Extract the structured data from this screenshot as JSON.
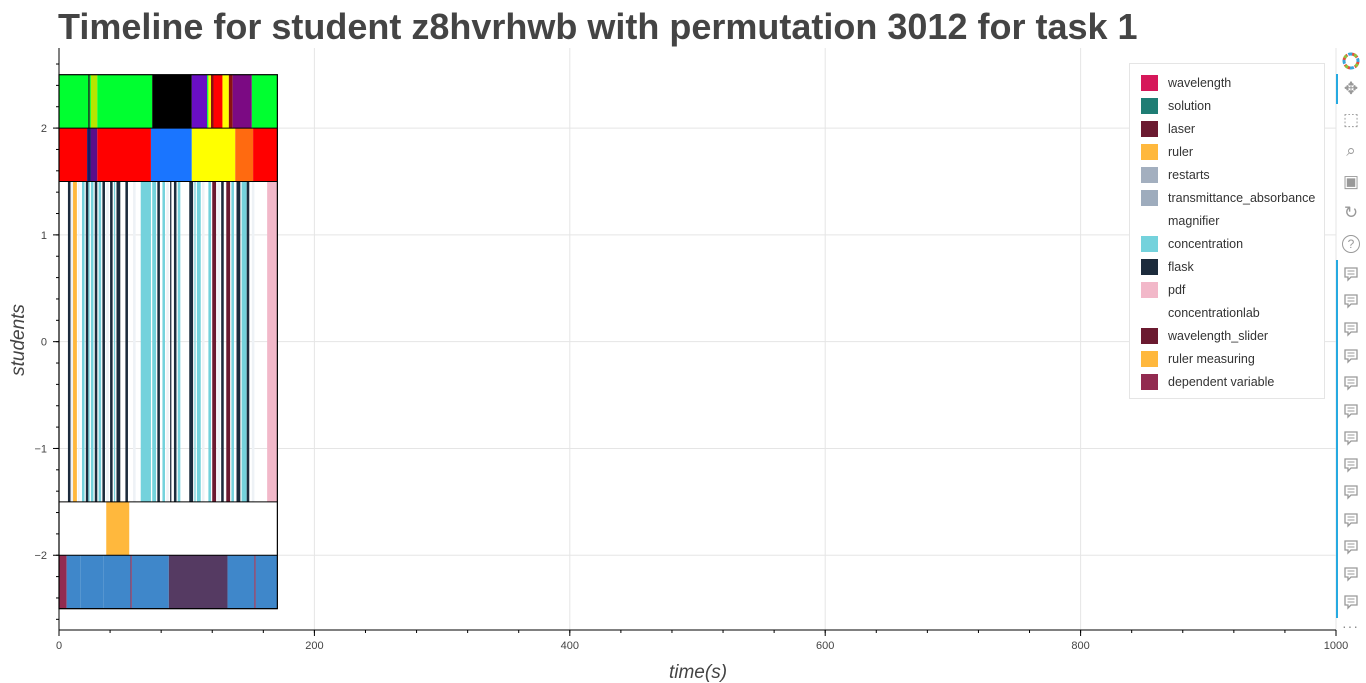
{
  "chart_data": {
    "type": "timeline",
    "title": "Timeline for student z8hvrhwb with permutation 3012 for task 1",
    "xlabel": "time(s)",
    "ylabel": "students",
    "xlim": [
      0,
      1000
    ],
    "ylim": [
      -2.7,
      2.75
    ],
    "xticks": [
      0,
      200,
      400,
      600,
      800,
      1000
    ],
    "yticks": [
      -2,
      -1,
      0,
      1,
      2
    ],
    "x_minor_step": 40,
    "y_minor_step": 0.2,
    "grid": true,
    "legend_position": "top-right",
    "legend": [
      {
        "label": "wavelength",
        "color": "#d6185a"
      },
      {
        "label": "solution",
        "color": "#1f7d74"
      },
      {
        "label": "laser",
        "color": "#6b1a30"
      },
      {
        "label": "ruler",
        "color": "#ffb83d"
      },
      {
        "label": "restarts",
        "color": "#a3afbf"
      },
      {
        "label": "transmittance_absorbance",
        "color": "#9eacbd"
      },
      {
        "label": "magnifier",
        "color": "#ffffff"
      },
      {
        "label": "concentration",
        "color": "#74d2dc"
      },
      {
        "label": "flask",
        "color": "#1c2b3c"
      },
      {
        "label": "pdf",
        "color": "#f2b8c9"
      },
      {
        "label": "concentrationlab",
        "color": "#ffffff"
      },
      {
        "label": "wavelength_slider",
        "color": "#6b1a30"
      },
      {
        "label": "ruler measuring",
        "color": "#ffb83d"
      },
      {
        "label": "dependent variable",
        "color": "#922b50"
      }
    ],
    "rows": [
      {
        "y0": 2.0,
        "y1": 2.5,
        "segments": [
          {
            "x0": 0,
            "x1": 23,
            "color": "#00ff30"
          },
          {
            "x0": 23,
            "x1": 24,
            "color": "#000000"
          },
          {
            "x0": 24,
            "x1": 25,
            "color": "#00ff30"
          },
          {
            "x0": 25,
            "x1": 30,
            "color": "#b6e600"
          },
          {
            "x0": 30,
            "x1": 73,
            "color": "#00ff30"
          },
          {
            "x0": 73,
            "x1": 104,
            "color": "#000000"
          },
          {
            "x0": 104,
            "x1": 116,
            "color": "#6a0ec4"
          },
          {
            "x0": 116,
            "x1": 117,
            "color": "#00ff30"
          },
          {
            "x0": 117,
            "x1": 119,
            "color": "#ffff00"
          },
          {
            "x0": 119,
            "x1": 121,
            "color": "#8a1010"
          },
          {
            "x0": 121,
            "x1": 128,
            "color": "#ff0000"
          },
          {
            "x0": 128,
            "x1": 133,
            "color": "#ffff00"
          },
          {
            "x0": 133,
            "x1": 136,
            "color": "#8a1010"
          },
          {
            "x0": 136,
            "x1": 151,
            "color": "#7b0a83"
          },
          {
            "x0": 151,
            "x1": 171,
            "color": "#00ff30"
          }
        ]
      },
      {
        "y0": 1.5,
        "y1": 2.0,
        "segments": [
          {
            "x0": 0,
            "x1": 22,
            "color": "#ff0000"
          },
          {
            "x0": 22,
            "x1": 25,
            "color": "#1a1a66"
          },
          {
            "x0": 25,
            "x1": 30,
            "color": "#5a0e8a"
          },
          {
            "x0": 30,
            "x1": 72,
            "color": "#ff0000"
          },
          {
            "x0": 72,
            "x1": 104,
            "color": "#1a75ff"
          },
          {
            "x0": 104,
            "x1": 138,
            "color": "#ffff00"
          },
          {
            "x0": 138,
            "x1": 152,
            "color": "#ff6a10"
          },
          {
            "x0": 152,
            "x1": 171,
            "color": "#ff0000"
          }
        ]
      },
      {
        "y0": -1.5,
        "y1": 1.5,
        "segments": [
          {
            "x0": 7,
            "x1": 9,
            "color": "#1c2b3c"
          },
          {
            "x0": 9,
            "x1": 11,
            "color": "#eef2f6"
          },
          {
            "x0": 11,
            "x1": 14,
            "color": "#ffb83d"
          },
          {
            "x0": 15,
            "x1": 16,
            "color": "#eef2f6"
          },
          {
            "x0": 18,
            "x1": 20,
            "color": "#74d2dc"
          },
          {
            "x0": 21,
            "x1": 23,
            "color": "#1c2b3c"
          },
          {
            "x0": 23,
            "x1": 24,
            "color": "#74d2dc"
          },
          {
            "x0": 25,
            "x1": 27,
            "color": "#74d2dc"
          },
          {
            "x0": 28,
            "x1": 30,
            "color": "#1c2b3c"
          },
          {
            "x0": 31,
            "x1": 33,
            "color": "#74d2dc"
          },
          {
            "x0": 34,
            "x1": 36,
            "color": "#1c2b3c"
          },
          {
            "x0": 37,
            "x1": 39,
            "color": "#eef2f6"
          },
          {
            "x0": 40,
            "x1": 42,
            "color": "#1c2b3c"
          },
          {
            "x0": 43,
            "x1": 44,
            "color": "#74d2dc"
          },
          {
            "x0": 45,
            "x1": 48,
            "color": "#1c2b3c"
          },
          {
            "x0": 52,
            "x1": 54,
            "color": "#1c2b3c"
          },
          {
            "x0": 58,
            "x1": 60,
            "color": "#eef2f6"
          },
          {
            "x0": 64,
            "x1": 72,
            "color": "#74d2dc"
          },
          {
            "x0": 73,
            "x1": 76,
            "color": "#74d2dc"
          },
          {
            "x0": 77,
            "x1": 79,
            "color": "#1c2b3c"
          },
          {
            "x0": 81,
            "x1": 83,
            "color": "#74d2dc"
          },
          {
            "x0": 84,
            "x1": 86,
            "color": "#eef2f6"
          },
          {
            "x0": 87,
            "x1": 88,
            "color": "#1c2b3c"
          },
          {
            "x0": 90,
            "x1": 92,
            "color": "#1c2b3c"
          },
          {
            "x0": 93,
            "x1": 95,
            "color": "#74d2dc"
          },
          {
            "x0": 102,
            "x1": 105,
            "color": "#1c2b3c"
          },
          {
            "x0": 106,
            "x1": 107,
            "color": "#74d2dc"
          },
          {
            "x0": 108,
            "x1": 111,
            "color": "#74d2dc"
          },
          {
            "x0": 112,
            "x1": 114,
            "color": "#eef2f6"
          },
          {
            "x0": 117,
            "x1": 119,
            "color": "#74d2dc"
          },
          {
            "x0": 120,
            "x1": 123,
            "color": "#6b1a30"
          },
          {
            "x0": 124,
            "x1": 126,
            "color": "#eef2f6"
          },
          {
            "x0": 127,
            "x1": 129,
            "color": "#1c2b3c"
          },
          {
            "x0": 131,
            "x1": 134,
            "color": "#6b1a30"
          },
          {
            "x0": 135,
            "x1": 137,
            "color": "#74d2dc"
          },
          {
            "x0": 139,
            "x1": 142,
            "color": "#1c2b3c"
          },
          {
            "x0": 143,
            "x1": 147,
            "color": "#74d2dc"
          },
          {
            "x0": 147,
            "x1": 149,
            "color": "#1c2b3c"
          },
          {
            "x0": 151,
            "x1": 153,
            "color": "#eef2f6"
          },
          {
            "x0": 163,
            "x1": 171,
            "color": "#f2b8c9"
          }
        ]
      },
      {
        "y0": -2.0,
        "y1": -1.5,
        "segments": [
          {
            "x0": 37,
            "x1": 55,
            "color": "#ffb83d"
          }
        ]
      },
      {
        "y0": -2.5,
        "y1": -2.0,
        "segments": [
          {
            "x0": 0,
            "x1": 6,
            "color": "#922b50"
          },
          {
            "x0": 6,
            "x1": 17,
            "color": "#3f87ca"
          },
          {
            "x0": 17,
            "x1": 35,
            "color": "#3f87ca"
          },
          {
            "x0": 35,
            "x1": 56,
            "color": "#3f87ca"
          },
          {
            "x0": 56,
            "x1": 57,
            "color": "#922b50"
          },
          {
            "x0": 57,
            "x1": 86,
            "color": "#3f87ca"
          },
          {
            "x0": 86,
            "x1": 132,
            "color": "#553a62"
          },
          {
            "x0": 132,
            "x1": 153,
            "color": "#3f87ca"
          },
          {
            "x0": 153,
            "x1": 154,
            "color": "#922b50"
          },
          {
            "x0": 154,
            "x1": 171,
            "color": "#3f87ca"
          }
        ]
      }
    ],
    "timeline_box": {
      "x0": 0,
      "x1": 171,
      "y0": -2.5,
      "y1": 2.5
    }
  },
  "toolbar": {
    "logo_icon": "bokeh-logo-icon",
    "tools": [
      "pan-icon",
      "box-zoom-icon",
      "wheel-zoom-icon",
      "save-icon",
      "reset-icon",
      "help-icon"
    ],
    "hover_tool_count": 13,
    "more_label": "···"
  }
}
